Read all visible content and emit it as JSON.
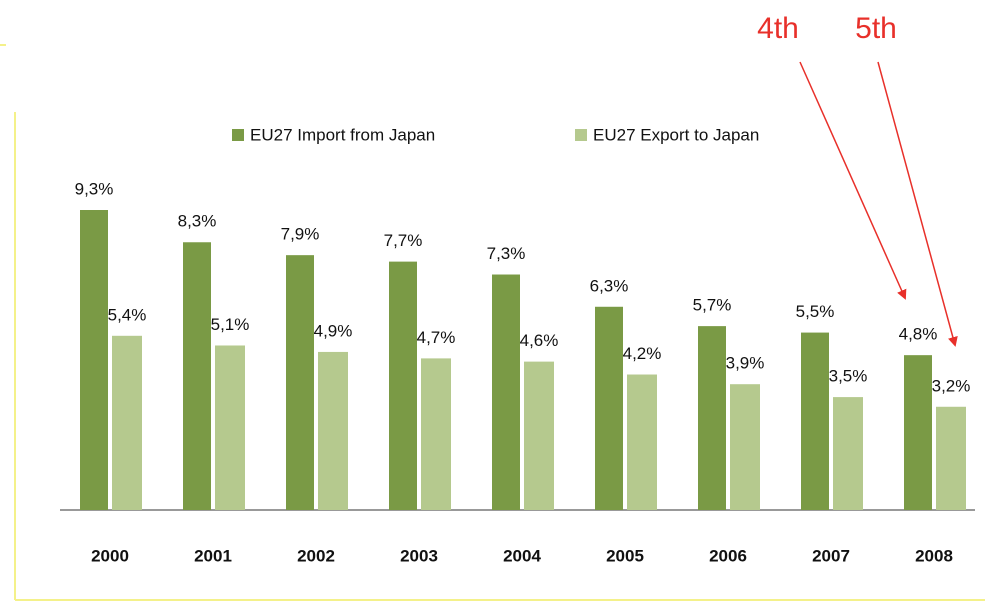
{
  "chart_data": {
    "type": "bar",
    "categories": [
      "2000",
      "2001",
      "2002",
      "2003",
      "2004",
      "2005",
      "2006",
      "2007",
      "2008"
    ],
    "series": [
      {
        "name": "EU27 Import from Japan",
        "color": "#7a9a45",
        "values": [
          9.3,
          8.3,
          7.9,
          7.7,
          7.3,
          6.3,
          5.7,
          5.5,
          4.8
        ],
        "value_labels": [
          "9,3%",
          "8,3%",
          "7,9%",
          "7,7%",
          "7,3%",
          "6,3%",
          "5,7%",
          "5,5%",
          "4,8%"
        ]
      },
      {
        "name": "EU27 Export to Japan",
        "color": "#b5c98e",
        "values": [
          5.4,
          5.1,
          4.9,
          4.7,
          4.6,
          4.2,
          3.9,
          3.5,
          3.2
        ],
        "value_labels": [
          "5,4%",
          "5,1%",
          "4,9%",
          "4,7%",
          "4,6%",
          "4,2%",
          "3,9%",
          "3,5%",
          "3,2%"
        ]
      }
    ],
    "annotations": [
      {
        "text": "4th"
      },
      {
        "text": "5th"
      }
    ]
  }
}
